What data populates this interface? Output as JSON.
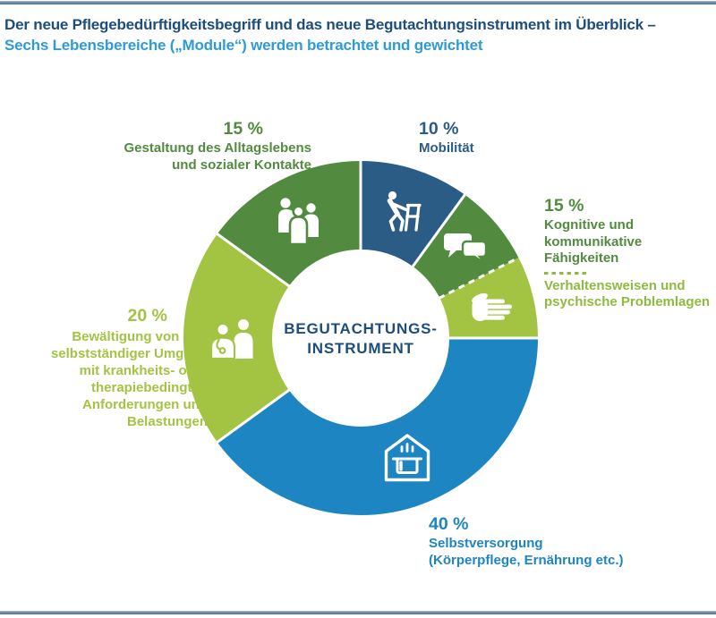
{
  "header": {
    "title_line1": "Der neue Pflegebedürftigkeitsbegriff und das neue Begutachtungsinstrument im Überblick –",
    "title_line2": "Sechs Lebensbereiche („Module“) werden betrachtet und gewichtet"
  },
  "colors": {
    "title_primary": "#1D4E7B",
    "title_accent": "#2E9BD6",
    "navy": "#2B5C86",
    "blue": "#1D85C2",
    "dark_green": "#528B40",
    "light_green": "#A3C443",
    "sub_label_green": "#8FBA40",
    "rule_blue": "#4D759C",
    "separator": "#FFFFFF"
  },
  "chart_data": {
    "type": "pie",
    "variant": "donut",
    "title": "Begutachtungsinstrument – Gewichtung der sechs Lebensbereiche (Module)",
    "units": "%",
    "start_angle_deg": 0,
    "outer_radius": 198,
    "inner_radius": 99,
    "segments": [
      {
        "id": "mobilitaet",
        "label": "Mobilität",
        "percent": 10,
        "value_label": "10 %",
        "color": "#2B5C86",
        "icon": "person-with-walker-icon"
      },
      {
        "id": "kognitiv",
        "label": "Kognitive und kommunikative Fähigkeiten",
        "percent": 7.5,
        "combined_value_label": "15 %",
        "color": "#528B40",
        "icon": "speech-bubbles-icon"
      },
      {
        "id": "verhalten",
        "label": "Verhaltensweisen und psychische Problemlagen",
        "percent": 7.5,
        "combined_value_label": "15 %",
        "color": "#A3C443",
        "icon": "hand-icon",
        "start_boundary": "dashed"
      },
      {
        "id": "selbstversorgung",
        "label": "Selbstversorgung (Körperpflege, Ernährung etc.)",
        "percent": 40,
        "value_label": "40 %",
        "color": "#1D85C2",
        "icon": "house-cooking-pot-icon"
      },
      {
        "id": "bewaeltigung",
        "label": "Bewältigung von und selbstständiger Umgang mit krankheits- oder therapiebedingten Anforderungen und Belastungen",
        "percent": 20,
        "value_label": "20 %",
        "color": "#A3C443",
        "icon": "doctor-patient-icon"
      },
      {
        "id": "gestaltung",
        "label": "Gestaltung des Alltagslebens und sozialer Kontakte",
        "percent": 15,
        "value_label": "15 %",
        "color": "#528B40",
        "icon": "people-group-icon"
      }
    ]
  },
  "center_label": {
    "line1": "BEGUTACHTUNGS-",
    "line2": "INSTRUMENT"
  },
  "labels": {
    "gestaltung": {
      "pct": "15 %",
      "line1": "Gestaltung des Alltagslebens",
      "line2": "und sozialer Kontakte"
    },
    "mobilitaet": {
      "pct": "10 %",
      "line1": "Mobilität"
    },
    "kognitiv": {
      "pct": "15 %",
      "line1": "Kognitive und kommunikative",
      "line2": "Fähigkeiten",
      "line3": "Verhaltensweisen und",
      "line4": "psychische Problemlagen"
    },
    "selbstversorgung": {
      "pct": "40 %",
      "line1": "Selbstversorgung",
      "line2": "(Körperpflege, Ernährung etc.)"
    },
    "bewaeltigung": {
      "pct": "20 %",
      "lines": [
        "Bewältigung von und",
        "selbstständiger Umgang",
        "mit krankheits- oder",
        "therapiebedingten",
        "Anforderungen und",
        "Belastungen"
      ]
    }
  }
}
